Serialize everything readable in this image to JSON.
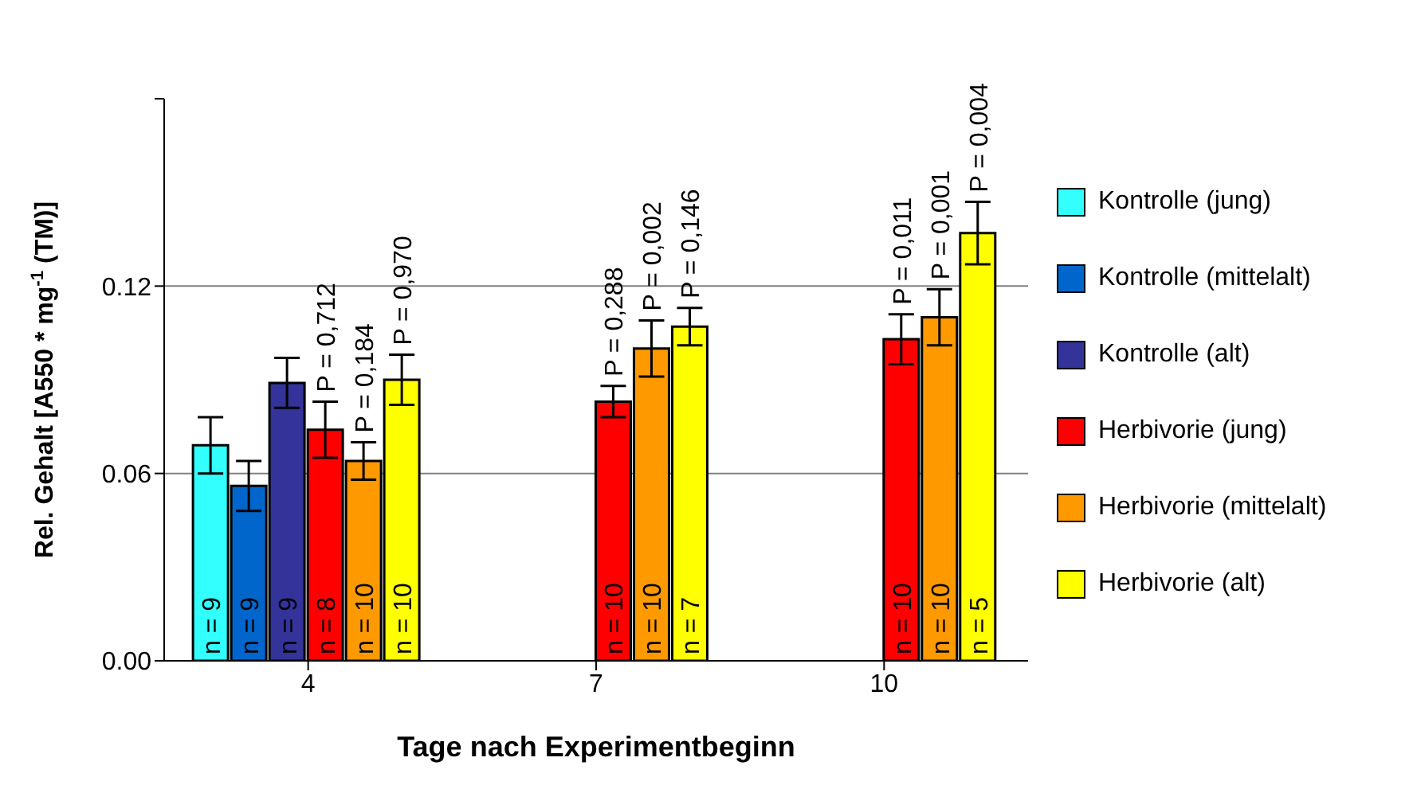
{
  "chart_data": {
    "type": "bar",
    "xlabel": "Tage nach Experimentbeginn",
    "ylabel": "Rel. Gehalt [A550 * mg$^{-1}$ (TM)]",
    "categories": [
      "4",
      "7",
      "10"
    ],
    "series": [
      {
        "name": "Kontrolle (jung)",
        "color": "#33ffff",
        "values": [
          0.069,
          null,
          null
        ],
        "errors": [
          0.009,
          null,
          null
        ]
      },
      {
        "name": "Kontrolle (mittelalt)",
        "color": "#0066cc",
        "values": [
          0.056,
          null,
          null
        ],
        "errors": [
          0.008,
          null,
          null
        ]
      },
      {
        "name": "Kontrolle (alt)",
        "color": "#333399",
        "values": [
          0.089,
          null,
          null
        ],
        "errors": [
          0.008,
          null,
          null
        ]
      },
      {
        "name": "Herbivorie (jung)",
        "color": "#ff0000",
        "values": [
          0.074,
          0.083,
          0.103
        ],
        "errors": [
          0.009,
          0.005,
          0.008
        ]
      },
      {
        "name": "Herbivorie (mittelalt)",
        "color": "#ff9900",
        "values": [
          0.064,
          0.1,
          0.11
        ],
        "errors": [
          0.006,
          0.009,
          0.009
        ]
      },
      {
        "name": "Herbivorie (alt)",
        "color": "#ffff00",
        "values": [
          0.09,
          0.107,
          0.137
        ],
        "errors": [
          0.008,
          0.006,
          0.01
        ]
      }
    ],
    "annotations": [
      "n = 9",
      "n = 9",
      "n = 9",
      "n = 8",
      "n = 10",
      "n = 10",
      "P = 0,712",
      "P = 0,184",
      "P = 0,970",
      "n = 10",
      "n = 10",
      "n = 7",
      "P = 0,288",
      "P = 0,002",
      "P = 0,146",
      "n = 10",
      "n = 10",
      "n = 5",
      "P = 0,011",
      "P = 0,001",
      "P = 0,004"
    ],
    "ylim": [
      0,
      0.18
    ],
    "yticks": [
      {
        "value": 0,
        "label": "0.00"
      },
      {
        "value": 0.06,
        "label": "0.06"
      },
      {
        "value": 0.12,
        "label": "0.12"
      },
      {
        "value": 0.18,
        "label": null
      }
    ],
    "grid": "y",
    "legend": "right"
  }
}
